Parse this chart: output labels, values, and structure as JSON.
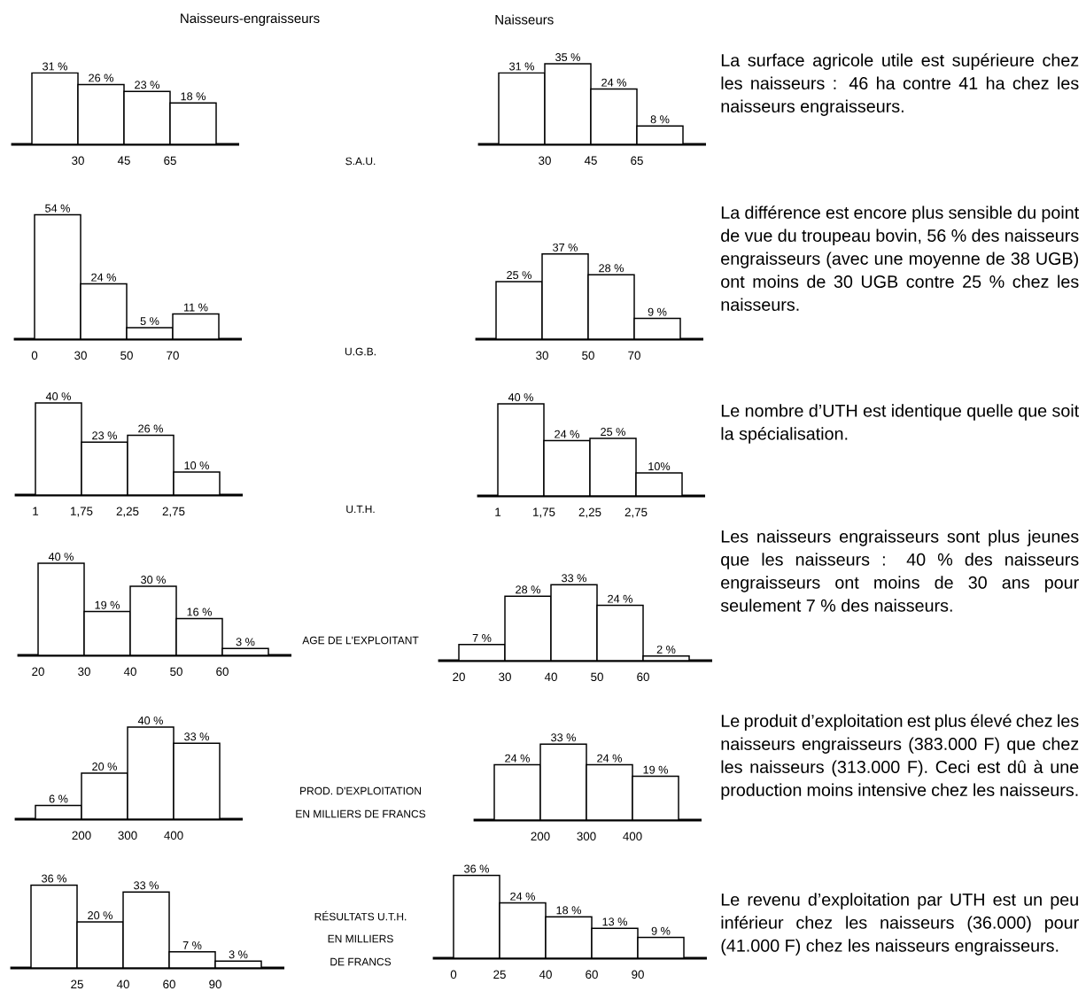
{
  "chart_data": [
    {
      "type": "bar",
      "title": "Naisseurs-engraisseurs",
      "categories": [
        null,
        null,
        null,
        null
      ],
      "values": [
        31,
        26,
        23,
        18
      ],
      "value_labels": [
        "31 %",
        "26 %",
        "23 %",
        "18 %"
      ],
      "color": "#ffffff",
      "tick_labels": false,
      "annotations": [
        "30",
        "45",
        "65"
      ]
    },
    {
      "type": "other",
      "annotations": [
        "S.A.U."
      ]
    },
    {
      "type": "bar",
      "title": "Naisseurs",
      "categories": [
        null,
        null,
        null,
        null
      ],
      "values": [
        31,
        35,
        24,
        8
      ],
      "value_labels": [
        "31 %",
        "35 %",
        "24 %",
        "8 %"
      ],
      "color": "#ffffff",
      "tick_labels": false,
      "annotations": [
        "30",
        "45",
        "65"
      ]
    },
    {
      "type": "other",
      "annotations": [
        "La surface agricole utile est supérieure chez les naisseurs : 46 ha contre 41 ha chez les naisseurs engraisseurs."
      ]
    },
    {
      "type": "bar",
      "categories": [
        null,
        null,
        null,
        null
      ],
      "values": [
        54,
        24,
        5,
        11
      ],
      "value_labels": [
        "54 %",
        "24 %",
        "5 %",
        "11 %"
      ],
      "color": "#ffffff",
      "tick_labels": false,
      "annotations": [
        "0",
        "30",
        "50",
        "70"
      ]
    },
    {
      "type": "other",
      "annotations": [
        "U.G.B."
      ]
    },
    {
      "type": "bar",
      "categories": [
        null,
        null,
        null,
        null
      ],
      "values": [
        25,
        37,
        28,
        9
      ],
      "value_labels": [
        "25 %",
        "37 %",
        "28 %",
        "9 %"
      ],
      "color": "#ffffff",
      "tick_labels": false,
      "annotations": [
        "30",
        "50",
        "70"
      ]
    },
    {
      "type": "other",
      "annotations": [
        "La différence est encore plus sensible du point de vue du troupeau bovin, 56 % des naisseurs engraisseurs (avec une moyenne de 38 UGB) ont moins de 30 UGB contre 25 % chez les naisseurs."
      ]
    },
    {
      "type": "bar",
      "categories": [
        null,
        null,
        null,
        null
      ],
      "values": [
        40,
        23,
        26,
        10
      ],
      "value_labels": [
        "40 %",
        "23 %",
        "26 %",
        "10 %"
      ],
      "color": "#ffffff",
      "tick_labels": false,
      "annotations": [
        "1",
        "1,75",
        "2,25",
        "2,75"
      ]
    },
    {
      "type": "other",
      "annotations": [
        "U.T.H."
      ]
    },
    {
      "type": "bar",
      "categories": [
        null,
        null,
        null,
        null
      ],
      "values": [
        40,
        24,
        25,
        10
      ],
      "value_labels": [
        "40 %",
        "24 %",
        "25 %",
        "10%"
      ],
      "color": "#ffffff",
      "tick_labels": false,
      "annotations": [
        "1",
        "1,75",
        "2,25",
        "2,75"
      ]
    },
    {
      "type": "other",
      "annotations": [
        "Le nombre d’UTH est identique quelle que soit la spécialisation."
      ]
    },
    {
      "type": "bar",
      "categories": [
        null,
        null,
        null,
        null,
        null
      ],
      "values": [
        40,
        19,
        30,
        16,
        3
      ],
      "value_labels": [
        "40 %",
        "19 %",
        "30 %",
        "16 %",
        "3 %"
      ],
      "color": "#ffffff",
      "tick_labels": false,
      "annotations": [
        "20",
        "30",
        "40",
        "50",
        "60"
      ]
    },
    {
      "type": "other",
      "annotations": [
        "AGE DE L'EXPLOITANT"
      ]
    },
    {
      "type": "bar",
      "categories": [
        null,
        null,
        null,
        null,
        null
      ],
      "values": [
        7,
        28,
        33,
        24,
        2
      ],
      "value_labels": [
        "7 %",
        "28 %",
        "33 %",
        "24 %",
        "2 %"
      ],
      "color": "#ffffff",
      "tick_labels": false,
      "annotations": [
        "20",
        "30",
        "40",
        "50",
        "60"
      ]
    },
    {
      "type": "other",
      "annotations": [
        "Les naisseurs engraisseurs sont plus jeunes que les naisseurs : 40 % des naisseurs engraisseurs ont moins de 30 ans pour seulement 7 % des naisseurs."
      ]
    },
    {
      "type": "bar",
      "categories": [
        null,
        null,
        null,
        null
      ],
      "values": [
        6,
        20,
        40,
        33
      ],
      "value_labels": [
        "6 %",
        "20 %",
        "40 %",
        "33 %"
      ],
      "color": "#ffffff",
      "tick_labels": false,
      "annotations": [
        "200",
        "300",
        "400"
      ]
    },
    {
      "type": "other",
      "annotations": [
        "PROD. D'EXPLOITATION",
        "EN MILLIERS DE FRANCS"
      ]
    },
    {
      "type": "bar",
      "categories": [
        null,
        null,
        null,
        null
      ],
      "values": [
        24,
        33,
        24,
        19
      ],
      "value_labels": [
        "24 %",
        "33 %",
        "24 %",
        "19 %"
      ],
      "color": "#ffffff",
      "tick_labels": false,
      "annotations": [
        "200",
        "300",
        "400"
      ]
    },
    {
      "type": "other",
      "annotations": [
        "Le produit d’exploitation est plus élevé chez les naisseurs engraisseurs (383.000 F) que chez les naisseurs (313.000 F). Ceci est dû à une production moins intensive chez les naisseurs."
      ]
    },
    {
      "type": "bar",
      "categories": [
        null,
        null,
        null,
        null,
        null
      ],
      "values": [
        36,
        20,
        33,
        7,
        3
      ],
      "value_labels": [
        "36 %",
        "20 %",
        "33 %",
        "7 %",
        "3 %"
      ],
      "color": "#ffffff",
      "tick_labels": false,
      "annotations": [
        "25",
        "40",
        "60",
        "90"
      ]
    },
    {
      "type": "other",
      "annotations": [
        "RÉSULTATS U.T.H.",
        "EN MILLIERS",
        "DE FRANCS"
      ]
    },
    {
      "type": "bar",
      "categories": [
        null,
        null,
        null,
        null,
        null
      ],
      "values": [
        36,
        24,
        18,
        13,
        9
      ],
      "value_labels": [
        "36 %",
        "24 %",
        "18 %",
        "13 %",
        "9 %"
      ],
      "color": "#ffffff",
      "tick_labels": false,
      "annotations": [
        "0",
        "25",
        "40",
        "60",
        "90"
      ]
    },
    {
      "type": "other",
      "annotations": [
        "Le revenu d’exploitation par UTH est un peu inférieur chez les naisseurs (36.000) pour (41.000 F) chez les naisseurs engraisseurs."
      ]
    }
  ]
}
